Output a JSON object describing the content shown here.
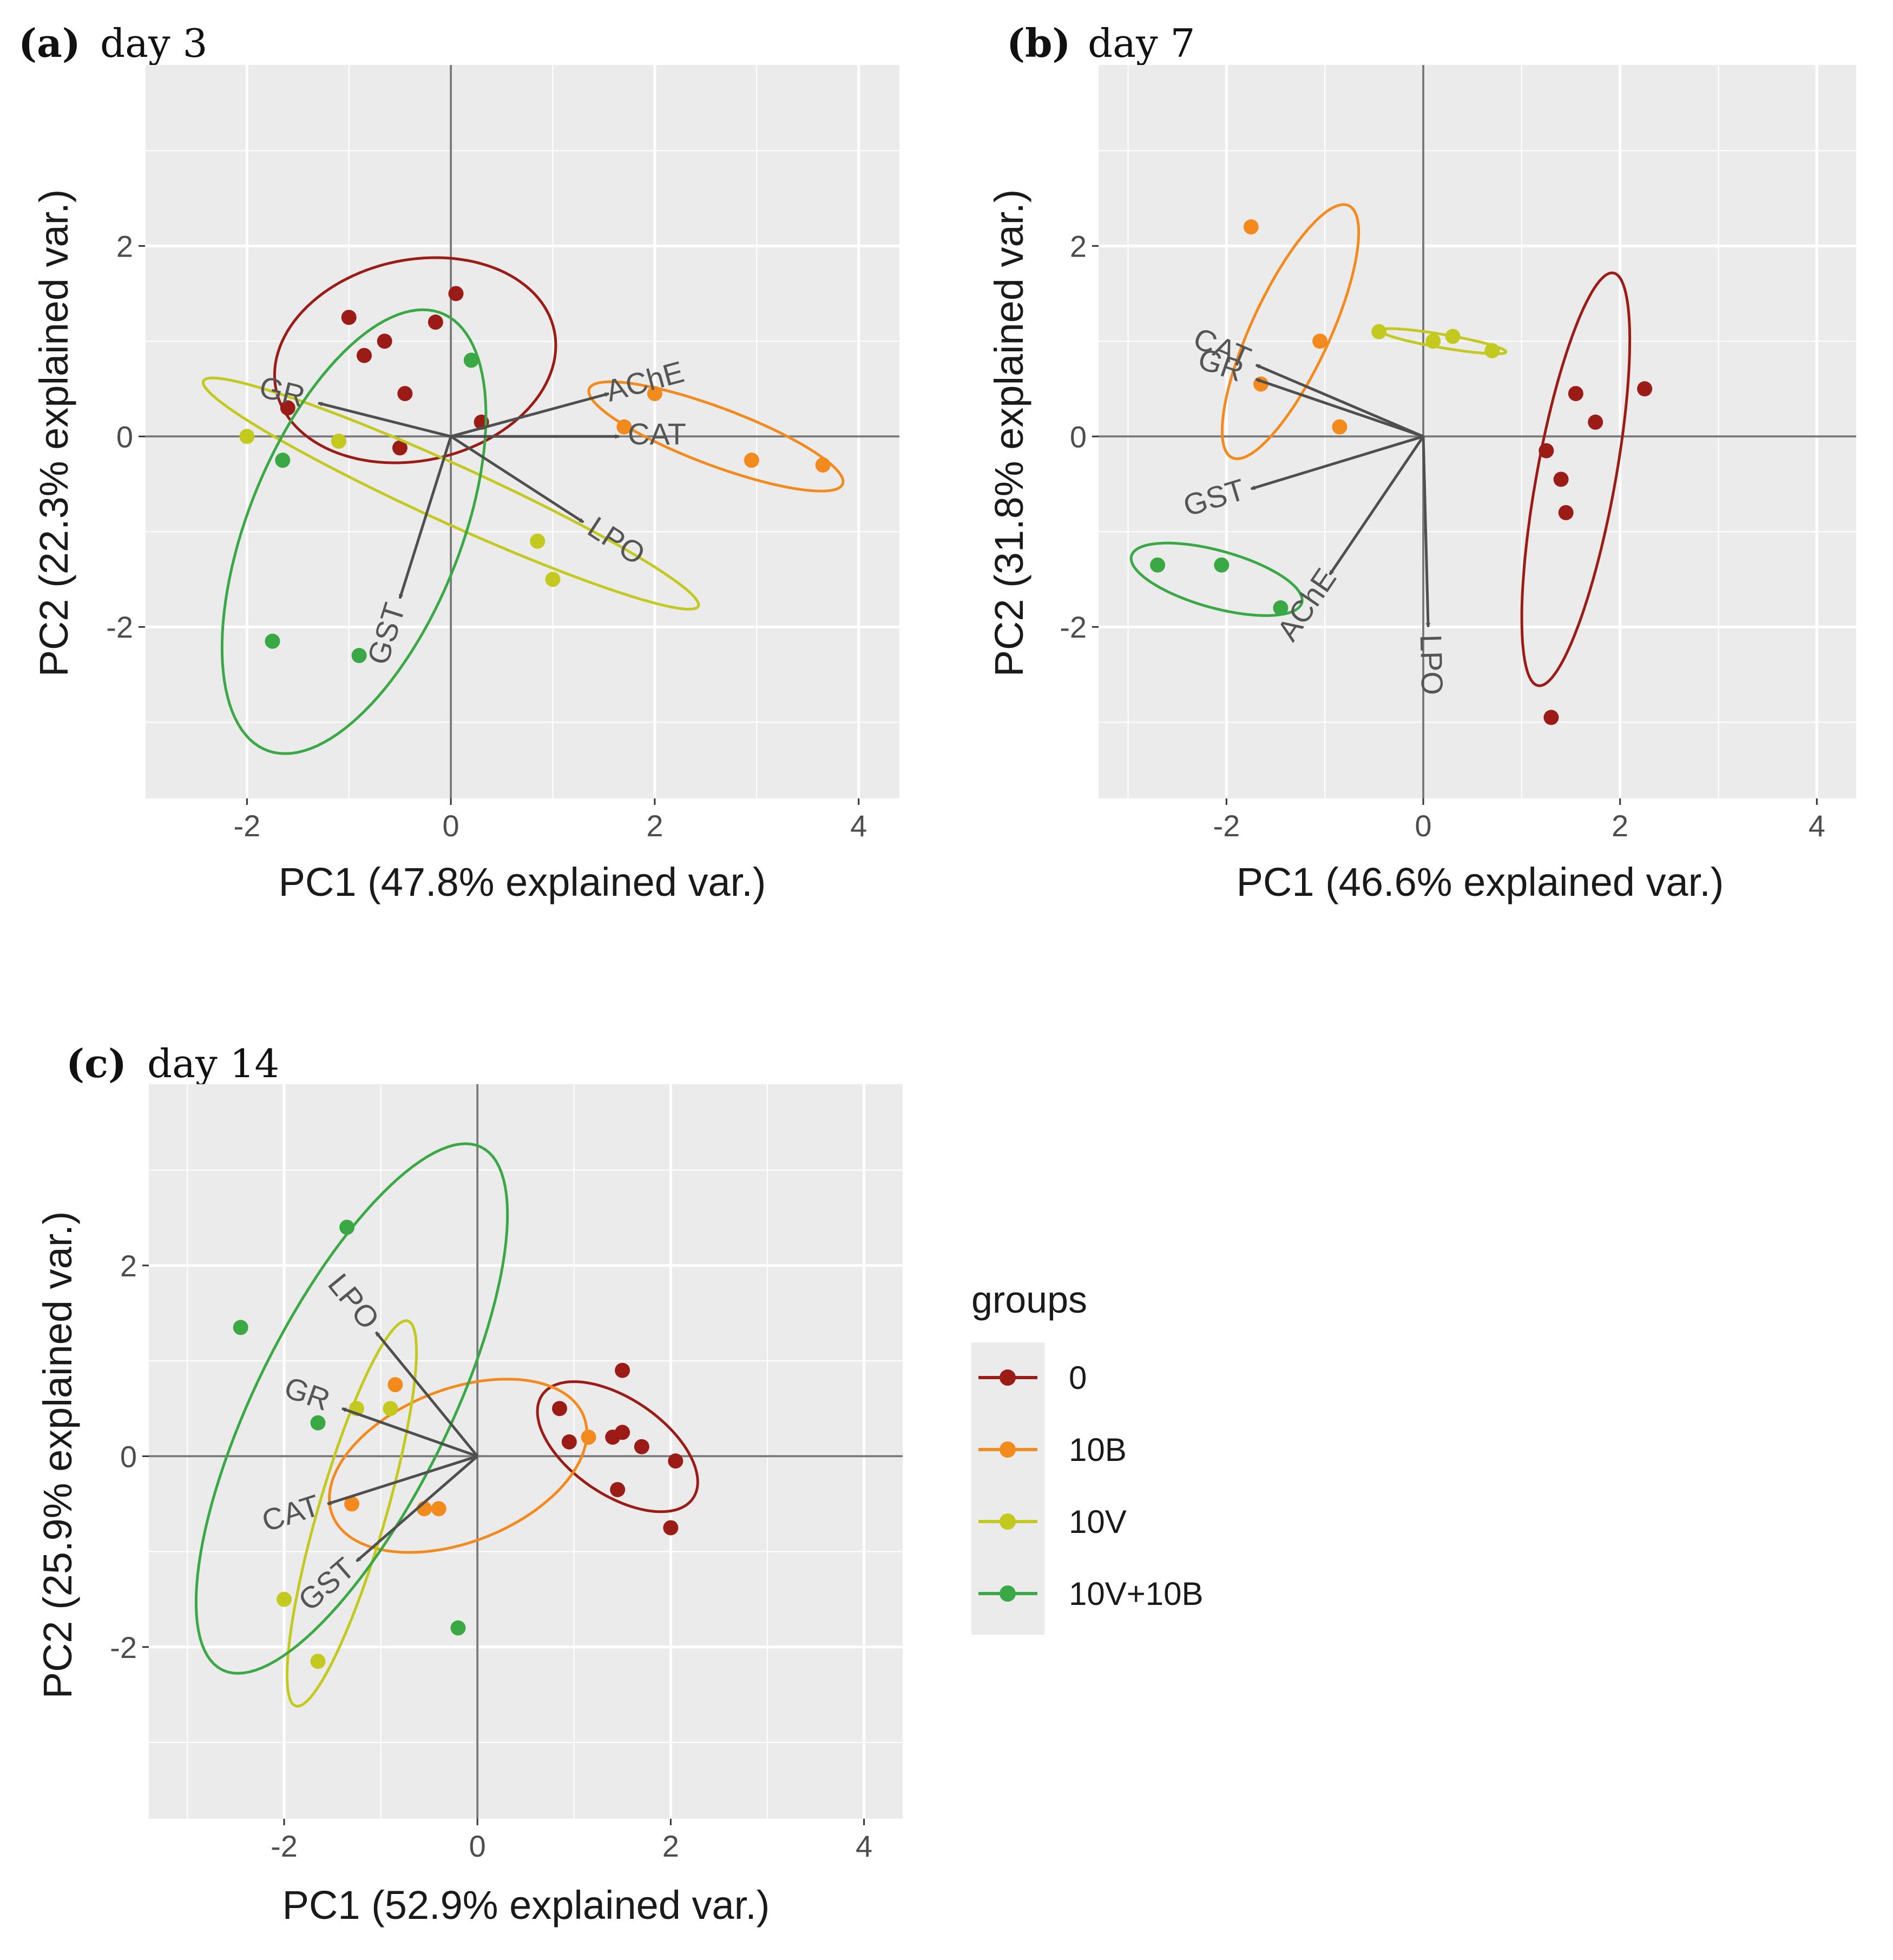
{
  "colors": {
    "0": "#9b1c16",
    "10B": "#f28a1e",
    "10V": "#c3c91e",
    "10V+10B": "#3aa845",
    "arrow": "#4f4f4f",
    "panel_bg": "#ebebeb",
    "grid": "#ffffff"
  },
  "legend": {
    "title": "groups",
    "items": [
      {
        "label": "0",
        "group": "0"
      },
      {
        "label": "10B",
        "group": "10B"
      },
      {
        "label": "10V",
        "group": "10V"
      },
      {
        "label": "10V+10B",
        "group": "10V+10B"
      }
    ]
  },
  "chart_data": [
    {
      "type": "scatter",
      "panel": "(a)",
      "title": "day 3",
      "xlabel": "PC1 (47.8% explained var.)",
      "ylabel": "PC2 (22.3% explained var.)",
      "xlim": [
        -3,
        4.4
      ],
      "ylim": [
        -3.8,
        3.9
      ],
      "xticks": [
        -2,
        0,
        2,
        4
      ],
      "yticks": [
        -2,
        0,
        2
      ],
      "groups": [
        {
          "name": "0",
          "points": [
            [
              -1,
              1.25
            ],
            [
              -0.65,
              1.0
            ],
            [
              -0.85,
              0.85
            ],
            [
              -0.15,
              1.2
            ],
            [
              0.05,
              1.5
            ],
            [
              -1.6,
              0.3
            ],
            [
              -0.45,
              0.45
            ],
            [
              0.3,
              0.15
            ],
            [
              -0.5,
              -0.12
            ]
          ],
          "ellipse": {
            "cx": -0.35,
            "cy": 0.8,
            "rx": 1.4,
            "ry": 1.05,
            "angle": 15
          }
        },
        {
          "name": "10B",
          "points": [
            [
              2.0,
              0.45
            ],
            [
              1.7,
              0.1
            ],
            [
              2.95,
              -0.25
            ],
            [
              3.65,
              -0.3
            ]
          ],
          "ellipse": {
            "cx": 2.6,
            "cy": 0.0,
            "rx": 1.34,
            "ry": 0.3,
            "angle": -22
          }
        },
        {
          "name": "10V",
          "points": [
            [
              -2.0,
              0.0
            ],
            [
              -1.1,
              -0.05
            ],
            [
              0.85,
              -1.1
            ],
            [
              1.0,
              -1.5
            ]
          ],
          "ellipse": {
            "cx": 0.0,
            "cy": -0.6,
            "rx": 2.7,
            "ry": 0.3,
            "angle": -26
          }
        },
        {
          "name": "10V+10B",
          "points": [
            [
              0.2,
              0.8
            ],
            [
              -1.65,
              -0.25
            ],
            [
              -1.75,
              -2.15
            ],
            [
              -0.9,
              -2.3
            ]
          ],
          "ellipse": {
            "cx": -0.95,
            "cy": -1.0,
            "rx": 2.45,
            "ry": 1.05,
            "angle": 70
          }
        }
      ],
      "arrows": [
        {
          "label": "GR",
          "x": -1.3,
          "y": 0.35
        },
        {
          "label": "AChE",
          "x": 1.55,
          "y": 0.45
        },
        {
          "label": "CAT",
          "x": 1.65,
          "y": 0.0
        },
        {
          "label": "LPO",
          "x": 1.3,
          "y": -0.9
        },
        {
          "label": "GST",
          "x": -0.5,
          "y": -1.7
        }
      ]
    },
    {
      "type": "scatter",
      "panel": "(b)",
      "title": "day 7",
      "xlabel": "PC1 (46.6% explained var.)",
      "ylabel": "PC2 (31.8% explained var.)",
      "xlim": [
        -3.3,
        4.4
      ],
      "ylim": [
        -3.8,
        3.9
      ],
      "xticks": [
        -2,
        0,
        2,
        4
      ],
      "yticks": [
        -2,
        0,
        2
      ],
      "groups": [
        {
          "name": "0",
          "points": [
            [
              1.55,
              0.45
            ],
            [
              2.25,
              0.5
            ],
            [
              1.75,
              0.15
            ],
            [
              1.25,
              -0.15
            ],
            [
              1.4,
              -0.45
            ],
            [
              1.45,
              -0.8
            ],
            [
              1.3,
              -2.95
            ]
          ],
          "ellipse": {
            "cx": 1.55,
            "cy": -0.45,
            "rx": 2.2,
            "ry": 0.4,
            "angle": 80
          }
        },
        {
          "name": "10B",
          "points": [
            [
              -1.75,
              2.2
            ],
            [
              -1.05,
              1.0
            ],
            [
              -1.65,
              0.55
            ],
            [
              -0.85,
              0.1
            ]
          ],
          "ellipse": {
            "cx": -1.35,
            "cy": 1.1,
            "rx": 1.45,
            "ry": 0.4,
            "angle": 66
          }
        },
        {
          "name": "10V",
          "points": [
            [
              -0.45,
              1.1
            ],
            [
              0.1,
              1.0
            ],
            [
              0.3,
              1.05
            ],
            [
              0.7,
              0.9
            ]
          ],
          "ellipse": {
            "cx": 0.2,
            "cy": 1.0,
            "rx": 0.65,
            "ry": 0.07,
            "angle": -10
          }
        },
        {
          "name": "10V+10B",
          "points": [
            [
              -2.7,
              -1.35
            ],
            [
              -2.05,
              -1.35
            ],
            [
              -1.45,
              -1.8
            ]
          ],
          "ellipse": {
            "cx": -2.1,
            "cy": -1.5,
            "rx": 0.9,
            "ry": 0.3,
            "angle": -16
          }
        }
      ],
      "arrows": [
        {
          "label": "CAT",
          "x": -1.7,
          "y": 0.75
        },
        {
          "label": "GR",
          "x": -1.7,
          "y": 0.6
        },
        {
          "label": "GST",
          "x": -1.75,
          "y": -0.55
        },
        {
          "label": "AChE",
          "x": -0.95,
          "y": -1.45
        },
        {
          "label": "LPO",
          "x": 0.05,
          "y": -2.0
        }
      ]
    },
    {
      "type": "scatter",
      "panel": "(c)",
      "title": "day 14",
      "xlabel": "PC1 (52.9% explained var.)",
      "ylabel": "PC2 (25.9% explained var.)",
      "xlim": [
        -3.4,
        4.4
      ],
      "ylim": [
        -3.8,
        3.9
      ],
      "xticks": [
        -2,
        0,
        2,
        4
      ],
      "yticks": [
        -2,
        0,
        2
      ],
      "groups": [
        {
          "name": "0",
          "points": [
            [
              1.5,
              0.9
            ],
            [
              0.85,
              0.5
            ],
            [
              0.95,
              0.15
            ],
            [
              1.4,
              0.2
            ],
            [
              1.5,
              0.25
            ],
            [
              1.7,
              0.1
            ],
            [
              2.05,
              -0.05
            ],
            [
              1.45,
              -0.35
            ],
            [
              2.0,
              -0.75
            ]
          ],
          "ellipse": {
            "cx": 1.45,
            "cy": 0.1,
            "rx": 0.95,
            "ry": 0.5,
            "angle": -35
          }
        },
        {
          "name": "10B",
          "points": [
            [
              -0.85,
              0.75
            ],
            [
              1.15,
              0.2
            ],
            [
              -0.55,
              -0.55
            ],
            [
              -0.4,
              -0.55
            ],
            [
              -1.3,
              -0.5
            ]
          ],
          "ellipse": {
            "cx": -0.2,
            "cy": -0.1,
            "rx": 1.4,
            "ry": 0.8,
            "angle": 22
          }
        },
        {
          "name": "10V",
          "points": [
            [
              -1.25,
              0.5
            ],
            [
              -0.9,
              0.5
            ],
            [
              -2.0,
              -1.5
            ],
            [
              -1.65,
              -2.15
            ]
          ],
          "ellipse": {
            "cx": -1.3,
            "cy": -0.6,
            "rx": 2.1,
            "ry": 0.35,
            "angle": 74
          }
        },
        {
          "name": "10V+10B",
          "points": [
            [
              -1.35,
              2.4
            ],
            [
              -2.45,
              1.35
            ],
            [
              -1.65,
              0.35
            ],
            [
              -0.2,
              -1.8
            ]
          ],
          "ellipse": {
            "cx": -1.3,
            "cy": 0.5,
            "rx": 3.05,
            "ry": 1.0,
            "angle": 64
          }
        }
      ],
      "arrows": [
        {
          "label": "LPO",
          "x": -1.05,
          "y": 1.3
        },
        {
          "label": "GR",
          "x": -1.4,
          "y": 0.5
        },
        {
          "label": "CAT",
          "x": -1.55,
          "y": -0.5
        },
        {
          "label": "GST",
          "x": -1.25,
          "y": -1.1
        }
      ]
    }
  ]
}
